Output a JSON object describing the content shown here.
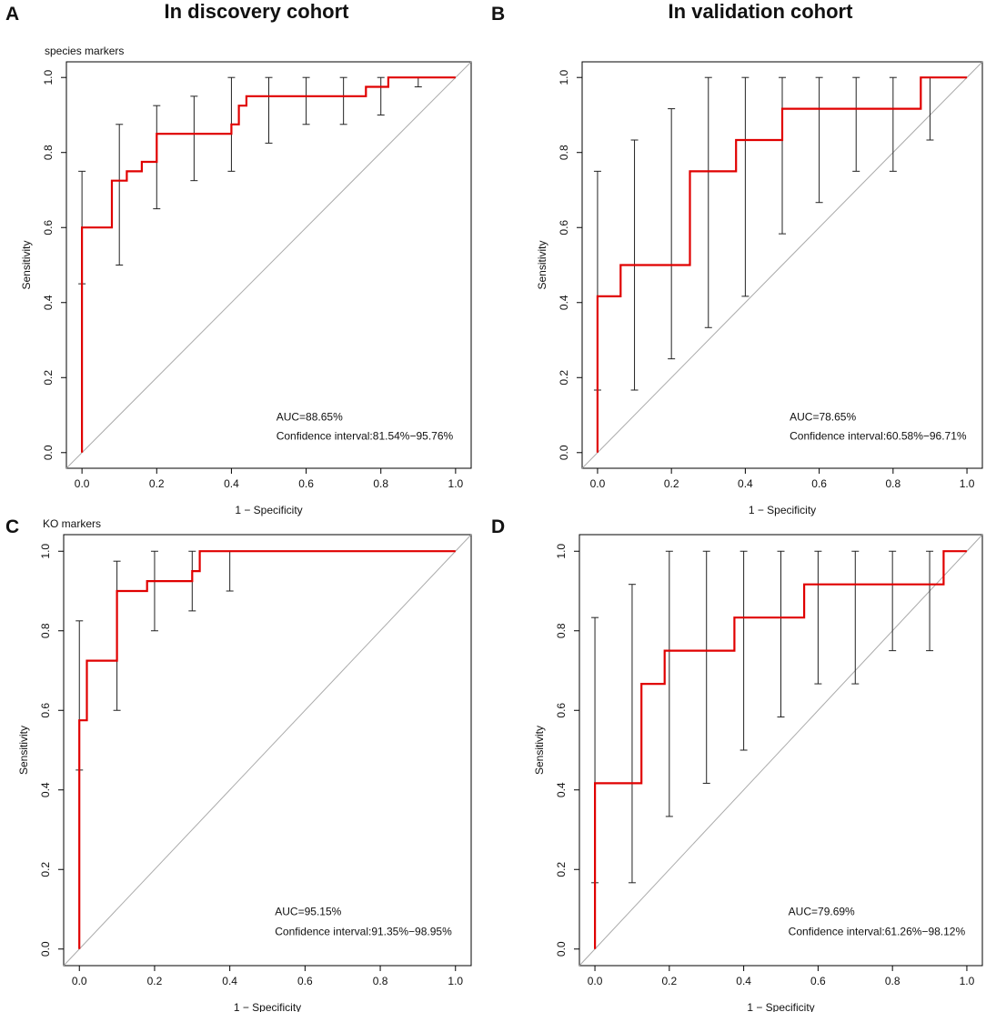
{
  "column_titles": [
    "In discovery cohort",
    "In validation cohort"
  ],
  "colors": {
    "roc": "#e00000",
    "ci": "#222222",
    "diagonal": "#aaaaaa",
    "frame": "#000000"
  },
  "chart_data": [
    {
      "panel": "A",
      "type": "line",
      "subtitle": "species markers",
      "xlabel": "1 − Specificity",
      "ylabel": "Sensitivity",
      "xlim": [
        0,
        1
      ],
      "ylim": [
        0,
        1
      ],
      "xticks": [
        "0.0",
        "0.2",
        "0.4",
        "0.6",
        "0.8",
        "1.0"
      ],
      "yticks": [
        "0.0",
        "0.2",
        "0.4",
        "0.6",
        "0.8",
        "1.0"
      ],
      "roc": {
        "x": [
          0,
          0,
          0,
          0.08,
          0.08,
          0.1,
          0.1,
          0.12,
          0.12,
          0.16,
          0.16,
          0.2,
          0.2,
          0.4,
          0.4,
          0.42,
          0.42,
          0.44,
          0.44,
          0.76,
          0.76,
          0.82,
          0.82,
          1.0
        ],
        "y": [
          0,
          0.6,
          0.6,
          0.6,
          0.725,
          0.725,
          0.725,
          0.725,
          0.75,
          0.75,
          0.775,
          0.775,
          0.85,
          0.85,
          0.875,
          0.875,
          0.925,
          0.925,
          0.95,
          0.95,
          0.975,
          0.975,
          1.0,
          1.0
        ]
      },
      "ci": [
        {
          "x": 0.0,
          "low": 0.45,
          "high": 0.75
        },
        {
          "x": 0.1,
          "low": 0.5,
          "high": 0.875
        },
        {
          "x": 0.2,
          "low": 0.65,
          "high": 0.925
        },
        {
          "x": 0.3,
          "low": 0.725,
          "high": 0.95
        },
        {
          "x": 0.4,
          "low": 0.75,
          "high": 1.0
        },
        {
          "x": 0.5,
          "low": 0.825,
          "high": 1.0
        },
        {
          "x": 0.6,
          "low": 0.875,
          "high": 1.0
        },
        {
          "x": 0.7,
          "low": 0.875,
          "high": 1.0
        },
        {
          "x": 0.8,
          "low": 0.9,
          "high": 1.0
        },
        {
          "x": 0.9,
          "low": 0.975,
          "high": 1.0
        }
      ],
      "auc_text": "AUC=88.65%",
      "ci_text": "Confidence interval:81.54%−95.76%"
    },
    {
      "panel": "B",
      "type": "line",
      "subtitle": "",
      "xlabel": "1 − Specificity",
      "ylabel": "Sensitivity",
      "xlim": [
        0,
        1
      ],
      "ylim": [
        0,
        1
      ],
      "xticks": [
        "0.0",
        "0.2",
        "0.4",
        "0.6",
        "0.8",
        "1.0"
      ],
      "yticks": [
        "0.0",
        "0.2",
        "0.4",
        "0.6",
        "0.8",
        "1.0"
      ],
      "roc": {
        "x": [
          0,
          0,
          0.0625,
          0.0625,
          0.25,
          0.25,
          0.375,
          0.375,
          0.5,
          0.5,
          0.875,
          0.875,
          1.0
        ],
        "y": [
          0,
          0.4167,
          0.4167,
          0.5,
          0.5,
          0.75,
          0.75,
          0.8333,
          0.8333,
          0.9167,
          0.9167,
          1.0,
          1.0
        ]
      },
      "ci": [
        {
          "x": 0.0,
          "low": 0.1667,
          "high": 0.75
        },
        {
          "x": 0.1,
          "low": 0.1667,
          "high": 0.8333
        },
        {
          "x": 0.2,
          "low": 0.25,
          "high": 0.9167
        },
        {
          "x": 0.3,
          "low": 0.3333,
          "high": 1.0
        },
        {
          "x": 0.4,
          "low": 0.4167,
          "high": 1.0
        },
        {
          "x": 0.5,
          "low": 0.5833,
          "high": 1.0
        },
        {
          "x": 0.6,
          "low": 0.6667,
          "high": 1.0
        },
        {
          "x": 0.7,
          "low": 0.75,
          "high": 1.0
        },
        {
          "x": 0.8,
          "low": 0.75,
          "high": 1.0
        },
        {
          "x": 0.9,
          "low": 0.8333,
          "high": 1.0
        }
      ],
      "auc_text": "AUC=78.65%",
      "ci_text": "Confidence interval:60.58%−96.71%"
    },
    {
      "panel": "C",
      "type": "line",
      "subtitle": "KO markers",
      "xlabel": "1 − Specificity",
      "ylabel": "Sensitivity",
      "xlim": [
        0,
        1
      ],
      "ylim": [
        0,
        1
      ],
      "xticks": [
        "0.0",
        "0.2",
        "0.4",
        "0.6",
        "0.8",
        "1.0"
      ],
      "yticks": [
        "0.0",
        "0.2",
        "0.4",
        "0.6",
        "0.8",
        "1.0"
      ],
      "roc": {
        "x": [
          0,
          0,
          0.01,
          0.01,
          0.02,
          0.02,
          0.1,
          0.1,
          0.18,
          0.18,
          0.3,
          0.3,
          0.32,
          0.32,
          1.0
        ],
        "y": [
          0,
          0.575,
          0.575,
          0.575,
          0.575,
          0.725,
          0.725,
          0.9,
          0.9,
          0.925,
          0.925,
          0.95,
          0.95,
          1.0,
          1.0
        ]
      },
      "ci": [
        {
          "x": 0.0,
          "low": 0.45,
          "high": 0.825
        },
        {
          "x": 0.1,
          "low": 0.6,
          "high": 0.975
        },
        {
          "x": 0.2,
          "low": 0.8,
          "high": 1.0
        },
        {
          "x": 0.3,
          "low": 0.85,
          "high": 1.0
        },
        {
          "x": 0.4,
          "low": 0.9,
          "high": 1.0
        },
        {
          "x": 0.5,
          "low": 1.0,
          "high": 1.0
        },
        {
          "x": 0.6,
          "low": 1.0,
          "high": 1.0
        },
        {
          "x": 0.7,
          "low": 1.0,
          "high": 1.0
        },
        {
          "x": 0.8,
          "low": 1.0,
          "high": 1.0
        },
        {
          "x": 0.9,
          "low": 1.0,
          "high": 1.0
        }
      ],
      "auc_text": "AUC=95.15%",
      "ci_text": "Confidence interval:91.35%−98.95%"
    },
    {
      "panel": "D",
      "type": "line",
      "subtitle": "",
      "xlabel": "1 − Specificity",
      "ylabel": "Sensitivity",
      "xlim": [
        0,
        1
      ],
      "ylim": [
        0,
        1
      ],
      "xticks": [
        "0.0",
        "0.2",
        "0.4",
        "0.6",
        "0.8",
        "1.0"
      ],
      "yticks": [
        "0.0",
        "0.2",
        "0.4",
        "0.6",
        "0.8",
        "1.0"
      ],
      "roc": {
        "x": [
          0,
          0,
          0.125,
          0.125,
          0.1875,
          0.1875,
          0.375,
          0.375,
          0.5625,
          0.5625,
          0.9375,
          0.9375,
          1.0
        ],
        "y": [
          0,
          0.4167,
          0.4167,
          0.6667,
          0.6667,
          0.75,
          0.75,
          0.8333,
          0.8333,
          0.9167,
          0.9167,
          1.0,
          1.0
        ]
      },
      "ci": [
        {
          "x": 0.0,
          "low": 0.1667,
          "high": 0.8333
        },
        {
          "x": 0.1,
          "low": 0.1667,
          "high": 0.9167
        },
        {
          "x": 0.2,
          "low": 0.3333,
          "high": 1.0
        },
        {
          "x": 0.3,
          "low": 0.4167,
          "high": 1.0
        },
        {
          "x": 0.4,
          "low": 0.5,
          "high": 1.0
        },
        {
          "x": 0.5,
          "low": 0.5833,
          "high": 1.0
        },
        {
          "x": 0.6,
          "low": 0.6667,
          "high": 1.0
        },
        {
          "x": 0.7,
          "low": 0.6667,
          "high": 1.0
        },
        {
          "x": 0.8,
          "low": 0.75,
          "high": 1.0
        },
        {
          "x": 0.9,
          "low": 0.75,
          "high": 1.0
        }
      ],
      "auc_text": "AUC=79.69%",
      "ci_text": "Confidence interval:61.26%−98.12%"
    }
  ]
}
